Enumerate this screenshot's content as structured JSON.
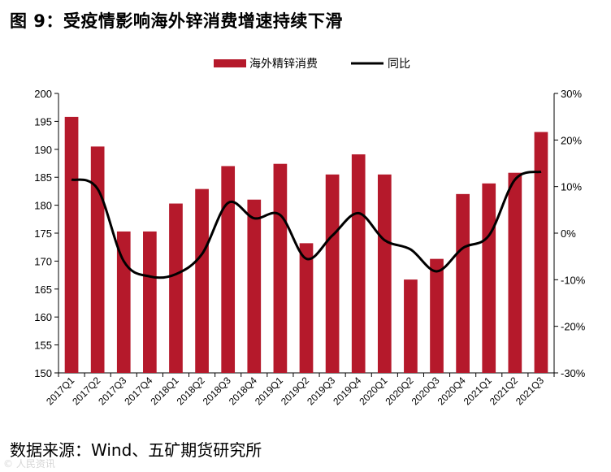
{
  "title": "图 9：受疫情影响海外锌消费增速持续下滑",
  "source": "数据来源：Wind、五矿期货研究所",
  "watermark": "© 人民资讯",
  "chart_data": {
    "type": "bar",
    "categories": [
      "2017Q1",
      "2017Q2",
      "2017Q3",
      "2017Q4",
      "2018Q1",
      "2018Q2",
      "2018Q3",
      "2018Q4",
      "2019Q1",
      "2019Q2",
      "2019Q3",
      "2019Q4",
      "2020Q1",
      "2020Q2",
      "2020Q3",
      "2020Q4",
      "2021Q1",
      "2021Q2",
      "2021Q3"
    ],
    "series": [
      {
        "name": "海外精锌消费",
        "type": "bar",
        "axis": "left",
        "color": "#b5192b",
        "values": [
          195.8,
          190.5,
          175.3,
          175.3,
          180.3,
          182.9,
          187.0,
          181.0,
          187.4,
          173.2,
          185.5,
          189.1,
          185.5,
          166.7,
          170.4,
          182.0,
          183.9,
          185.8,
          193.1
        ]
      },
      {
        "name": "同比",
        "type": "line",
        "axis": "right",
        "color": "#000000",
        "values": [
          11.5,
          9.5,
          -6.0,
          -9.3,
          -8.8,
          -4.5,
          6.5,
          3.2,
          3.9,
          -5.5,
          -0.5,
          4.3,
          -1.5,
          -3.5,
          -8.2,
          -3.2,
          -0.5,
          11.5,
          13.2
        ]
      }
    ],
    "y_left": {
      "min": 150,
      "max": 200,
      "step": 5,
      "ticks": [
        "150",
        "155",
        "160",
        "165",
        "170",
        "175",
        "180",
        "185",
        "190",
        "195",
        "200"
      ]
    },
    "y_right": {
      "min": -30,
      "max": 30,
      "step": 10,
      "ticks": [
        "-30%",
        "-20%",
        "-10%",
        "0%",
        "10%",
        "20%",
        "30%"
      ]
    },
    "legend_position": "top-center",
    "grid": false
  }
}
